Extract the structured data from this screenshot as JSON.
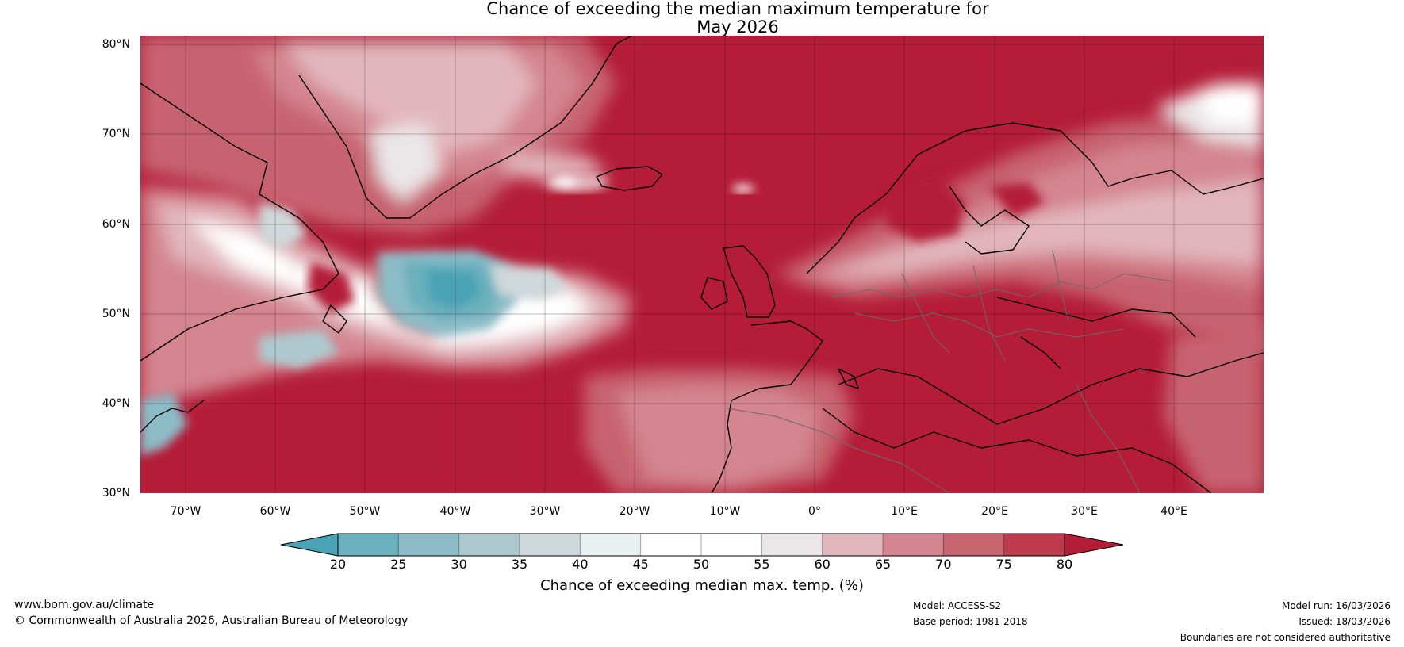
{
  "title_line1": "Chance of exceeding the median maximum temperature for",
  "title_line2": "May 2026",
  "lat_labels": [
    "80°N",
    "70°N",
    "60°N",
    "50°N",
    "40°N",
    "30°N"
  ],
  "lon_labels": [
    "70°W",
    "60°W",
    "50°W",
    "40°W",
    "30°W",
    "20°W",
    "10°W",
    "0°",
    "10°E",
    "20°E",
    "30°E",
    "40°E"
  ],
  "colorbar": {
    "ticks": [
      "20",
      "25",
      "30",
      "35",
      "40",
      "45",
      "50",
      "55",
      "60",
      "65",
      "70",
      "75",
      "80"
    ],
    "colors": [
      "#4aa2b5",
      "#6ab0bd",
      "#8cbcc7",
      "#adc9ce",
      "#cfd8da",
      "#e9f0f2",
      "#ffffff",
      "#ffffff",
      "#ebe6e8",
      "#e2b6bd",
      "#d4858f",
      "#c7646f",
      "#bd3b4c",
      "#b41c37"
    ],
    "title": "Chance of exceeding median max. temp. (%)"
  },
  "footer": {
    "website": "www.bom.gov.au/climate",
    "copyright": "© Commonwealth of Australia 2026, Australian Bureau of Meteorology",
    "model": "Model: ACCESS-S2",
    "base_period": "Base period: 1981-2018",
    "model_run": "Model run: 16/03/2026",
    "issued": "Issued: 18/03/2026",
    "disclaimer": "Boundaries are not considered authoritative"
  }
}
